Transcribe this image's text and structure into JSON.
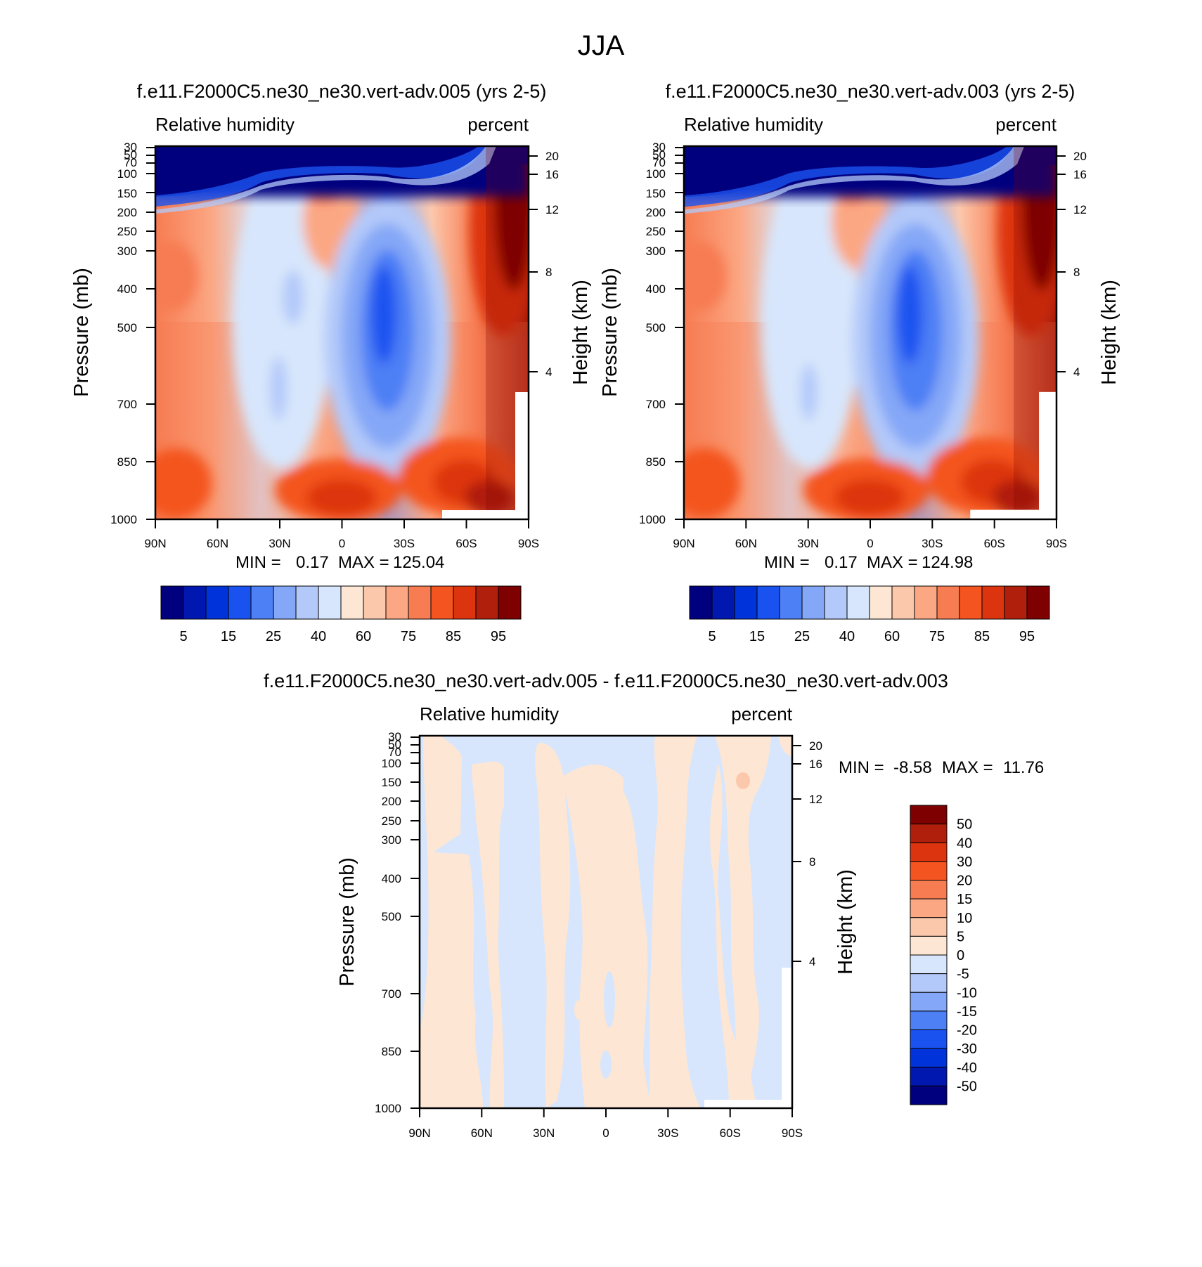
{
  "figure_title": "JJA",
  "chart_data": [
    {
      "type": "heatmap",
      "title": "f.e11.F2000C5.ne30_ne30.vert-adv.005 (yrs 2-5)",
      "left_subtitle": "Relative humidity",
      "right_subtitle": "percent",
      "ylabel": "Pressure (mb)",
      "y2label": "Height (km)",
      "x_ticks": [
        "90N",
        "60N",
        "30N",
        "0",
        "30S",
        "60S",
        "90S"
      ],
      "y_ticks": [
        "30",
        "50",
        "70",
        "100",
        "150",
        "200",
        "250",
        "300",
        "400",
        "500",
        "700",
        "850",
        "1000"
      ],
      "y2_ticks": [
        "20",
        "16",
        "12",
        "8",
        "4"
      ],
      "stats": {
        "min_label": "MIN =",
        "min": "0.17",
        "max_label": "MAX =",
        "max": "125.04"
      },
      "colorbar": {
        "orientation": "horizontal",
        "labels": [
          "5",
          "15",
          "25",
          "40",
          "60",
          "75",
          "85",
          "95"
        ],
        "colors": [
          "#00007f",
          "#0018b0",
          "#0033d9",
          "#1a52f0",
          "#4d7ff5",
          "#85a7f7",
          "#b3c9f9",
          "#d7e6fc",
          "#fde6d4",
          "#fcc8ac",
          "#fba783",
          "#f77c52",
          "#f4541f",
          "#dd3410",
          "#b01f0b",
          "#7f0000"
        ]
      }
    },
    {
      "type": "heatmap",
      "title": "f.e11.F2000C5.ne30_ne30.vert-adv.003 (yrs 2-5)",
      "left_subtitle": "Relative humidity",
      "right_subtitle": "percent",
      "ylabel": "Pressure (mb)",
      "y2label": "Height (km)",
      "x_ticks": [
        "90N",
        "60N",
        "30N",
        "0",
        "30S",
        "60S",
        "90S"
      ],
      "y_ticks": [
        "30",
        "50",
        "70",
        "100",
        "150",
        "200",
        "250",
        "300",
        "400",
        "500",
        "700",
        "850",
        "1000"
      ],
      "y2_ticks": [
        "20",
        "16",
        "12",
        "8",
        "4"
      ],
      "stats": {
        "min_label": "MIN =",
        "min": "0.17",
        "max_label": "MAX =",
        "max": "124.98"
      },
      "colorbar": {
        "orientation": "horizontal",
        "labels": [
          "5",
          "15",
          "25",
          "40",
          "60",
          "75",
          "85",
          "95"
        ],
        "colors": [
          "#00007f",
          "#0018b0",
          "#0033d9",
          "#1a52f0",
          "#4d7ff5",
          "#85a7f7",
          "#b3c9f9",
          "#d7e6fc",
          "#fde6d4",
          "#fcc8ac",
          "#fba783",
          "#f77c52",
          "#f4541f",
          "#dd3410",
          "#b01f0b",
          "#7f0000"
        ]
      }
    },
    {
      "type": "heatmap",
      "title": "f.e11.F2000C5.ne30_ne30.vert-adv.005 - f.e11.F2000C5.ne30_ne30.vert-adv.003",
      "left_subtitle": "Relative humidity",
      "right_subtitle": "percent",
      "ylabel": "Pressure (mb)",
      "y2label": "Height (km)",
      "x_ticks": [
        "90N",
        "60N",
        "30N",
        "0",
        "30S",
        "60S",
        "90S"
      ],
      "y_ticks": [
        "30",
        "50",
        "70",
        "100",
        "150",
        "200",
        "250",
        "300",
        "400",
        "500",
        "700",
        "850",
        "1000"
      ],
      "y2_ticks": [
        "20",
        "16",
        "12",
        "8",
        "4"
      ],
      "stats": {
        "min_label": "MIN =",
        "min": "-8.58",
        "max_label": "MAX =",
        "max": "11.76"
      },
      "colorbar": {
        "orientation": "vertical",
        "labels": [
          "50",
          "40",
          "30",
          "20",
          "15",
          "10",
          "5",
          "0",
          "-5",
          "-10",
          "-15",
          "-20",
          "-30",
          "-40",
          "-50"
        ],
        "colors": [
          "#7f0000",
          "#b01f0b",
          "#dd3410",
          "#f4541f",
          "#f77c52",
          "#fba783",
          "#fcc8ac",
          "#fde6d4",
          "#d7e6fc",
          "#b3c9f9",
          "#85a7f7",
          "#4d7ff5",
          "#1a52f0",
          "#0033d9",
          "#0018b0",
          "#00007f"
        ]
      }
    }
  ]
}
